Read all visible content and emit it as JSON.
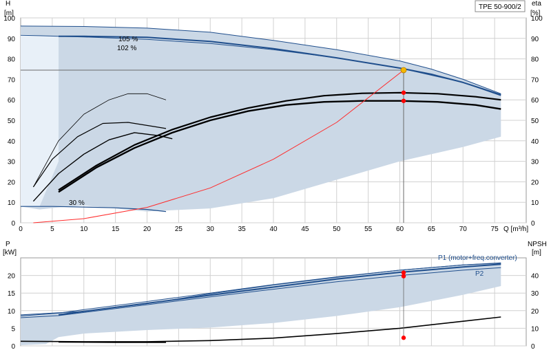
{
  "chart_data": [
    {
      "type": "line",
      "model": "TPE 50-900/2",
      "y_left_label": "H",
      "y_left_unit": "[m]",
      "y_right_label": "eta",
      "y_right_unit": "[%]",
      "x_unit": "Q [m³/h]",
      "xlim": [
        0,
        80
      ],
      "ylim": [
        0,
        100
      ],
      "x_ticks": [
        0,
        5,
        10,
        15,
        20,
        25,
        30,
        35,
        40,
        45,
        50,
        55,
        60,
        65,
        70,
        75
      ],
      "y_ticks": [
        0,
        10,
        20,
        30,
        40,
        50,
        60,
        70,
        80,
        90,
        100
      ],
      "grid": true,
      "colors": {
        "envelope": "#cbd8e6",
        "envelope_light": "#e8f0f8",
        "pump_curve": "#1f4e8c",
        "efficiency": "#000000",
        "system_curve": "#ff2a2a",
        "duty_point": "#f5b800",
        "duty_line": "#6a6a6a",
        "marker": "#ff0000"
      },
      "annotations": [
        "105 %",
        "102 %",
        "30 %"
      ],
      "duty_point": {
        "x": 60.6,
        "y": 74.5
      },
      "duty_markers": [
        {
          "x": 60.6,
          "y": 63.5
        },
        {
          "x": 60.6,
          "y": 59.5
        }
      ],
      "series": [
        {
          "role": "envelope-upper",
          "x": [
            0,
            10,
            20,
            30,
            40,
            50,
            60,
            65,
            70,
            76
          ],
          "y": [
            96,
            95.8,
            95,
            93,
            89,
            84.5,
            79,
            75,
            70,
            63
          ]
        },
        {
          "role": "envelope-lower",
          "x": [
            0,
            3,
            6,
            10,
            20,
            23,
            30,
            40,
            50,
            60,
            70,
            76
          ],
          "y": [
            8,
            6.5,
            7.5,
            8.5,
            5.5,
            6,
            7,
            12,
            21,
            30,
            37,
            42
          ]
        },
        {
          "role": "h-curve-105",
          "x": [
            6,
            10,
            20,
            30,
            40,
            50,
            60,
            65,
            70,
            76
          ],
          "y": [
            91,
            91,
            90.5,
            88.5,
            85,
            80.5,
            75.5,
            72.5,
            68.5,
            62.5
          ]
        },
        {
          "role": "h-curve-102",
          "x": [
            0,
            3,
            6,
            10,
            20,
            30,
            40,
            50,
            60,
            70,
            76
          ],
          "y": [
            91.5,
            91.3,
            91,
            90.7,
            89.5,
            87.5,
            84.5,
            80.5,
            75.5,
            68.5,
            62
          ]
        },
        {
          "role": "h-curve-30",
          "x": [
            0,
            5,
            10,
            15,
            20,
            23
          ],
          "y": [
            8,
            8,
            7.7,
            7.3,
            6.5,
            5.5
          ]
        },
        {
          "role": "eta-outer",
          "x": [
            6,
            12,
            18,
            24,
            30,
            36,
            42,
            48,
            54,
            60,
            66,
            72,
            76
          ],
          "y": [
            16,
            28,
            38,
            45.5,
            51.5,
            56,
            59.5,
            62,
            63.2,
            63.5,
            63,
            61.5,
            60
          ]
        },
        {
          "role": "eta-inner",
          "x": [
            6,
            12,
            18,
            24,
            30,
            36,
            42,
            48,
            54,
            60,
            66,
            72,
            76
          ],
          "y": [
            15,
            27,
            36.5,
            44,
            50,
            54.5,
            57.5,
            59,
            59.5,
            59.5,
            59,
            57.5,
            55.5
          ]
        },
        {
          "role": "eta-mid",
          "x": [
            2,
            6,
            10,
            14,
            18,
            22,
            24
          ],
          "y": [
            10.5,
            24,
            33.5,
            40.5,
            44,
            42.5,
            41
          ]
        },
        {
          "role": "eta-low",
          "x": [
            2,
            5,
            9,
            13,
            17,
            21,
            23
          ],
          "y": [
            17.5,
            31,
            42,
            48.5,
            49,
            47,
            46
          ]
        },
        {
          "role": "eta-thin",
          "x": [
            2,
            6,
            10,
            14,
            17,
            20,
            23
          ],
          "y": [
            17.5,
            40,
            53,
            60,
            63,
            63,
            60
          ]
        },
        {
          "role": "system-curve",
          "x": [
            2,
            10,
            20,
            30,
            40,
            50,
            60.6
          ],
          "y": [
            0,
            2,
            7.5,
            17,
            31,
            49,
            74.5
          ]
        },
        {
          "role": "duty-horizontal",
          "x": [
            0,
            60.6
          ],
          "y": [
            74.5,
            74.5
          ]
        },
        {
          "role": "duty-vertical",
          "x": [
            60.6,
            60.6
          ],
          "y": [
            0,
            74.5
          ]
        }
      ]
    },
    {
      "type": "line",
      "y_left_label": "P",
      "y_left_unit": "[kW]",
      "y_right_label": "NPSH",
      "y_right_unit": "[m]",
      "xlim": [
        0,
        80
      ],
      "ylim": [
        0,
        25
      ],
      "y_right_lim": [
        0,
        50
      ],
      "y_ticks": [
        0,
        5,
        10,
        15,
        20
      ],
      "y_right_ticks": [
        0,
        10,
        20,
        30,
        40
      ],
      "grid": true,
      "legend_labels": [
        "P1 (motor+freq.converter)",
        "P2"
      ],
      "markers": [
        {
          "x": 60.6,
          "y": 20.8
        },
        {
          "x": 60.6,
          "y": 19.8
        },
        {
          "x": 60.6,
          "y": 2.3
        }
      ],
      "series": [
        {
          "role": "envelope-upper",
          "x": [
            0,
            10,
            20,
            30,
            40,
            50,
            60,
            70,
            76
          ],
          "y": [
            8.8,
            9.8,
            12,
            14.8,
            17.3,
            19.5,
            21.5,
            23,
            23.5
          ]
        },
        {
          "role": "envelope-lower",
          "x": [
            0,
            4,
            6,
            10,
            20,
            30,
            40,
            50,
            60,
            70,
            76
          ],
          "y": [
            0.2,
            0.5,
            2.5,
            3.5,
            4.5,
            5.2,
            6.5,
            8.5,
            11,
            14.5,
            17
          ]
        },
        {
          "role": "p1-outer",
          "x": [
            0,
            6,
            10,
            20,
            30,
            40,
            50,
            60,
            70,
            76
          ],
          "y": [
            8.5,
            9.3,
            10.3,
            12.6,
            15,
            17.4,
            19.6,
            21.5,
            23,
            23.6
          ]
        },
        {
          "role": "p1",
          "x": [
            6,
            10,
            20,
            30,
            40,
            50,
            60,
            70,
            76
          ],
          "y": [
            8.8,
            9.8,
            12.1,
            14.4,
            16.7,
            19,
            20.9,
            22.4,
            23.2
          ]
        },
        {
          "role": "p2",
          "x": [
            0,
            6,
            10,
            20,
            30,
            40,
            50,
            60,
            70,
            76
          ],
          "y": [
            8,
            8.6,
            9.5,
            11.7,
            13.9,
            16.1,
            18.2,
            20,
            21.5,
            22.2
          ]
        },
        {
          "role": "npsh",
          "x": [
            0,
            10,
            20,
            30,
            40,
            50,
            60,
            70,
            76
          ],
          "y": [
            1.3,
            1.2,
            1.2,
            1.5,
            2.2,
            3.5,
            5,
            7,
            8.2
          ]
        },
        {
          "role": "npsh-short",
          "x": [
            6,
            15,
            23
          ],
          "y": [
            1.1,
            1.0,
            1.0
          ]
        }
      ]
    }
  ]
}
